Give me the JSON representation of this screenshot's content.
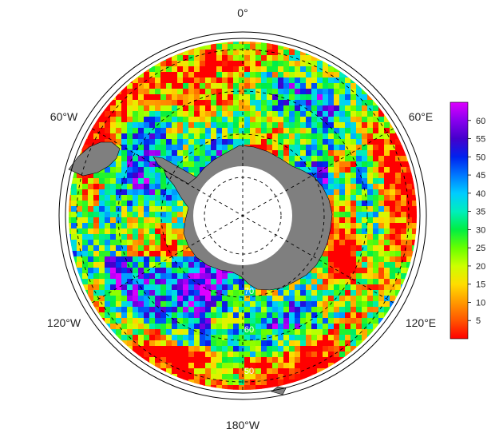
{
  "map": {
    "projection": "south-polar-stereographic",
    "longitude_labels": [
      {
        "id": "lon-0",
        "text": "0°"
      },
      {
        "id": "lon-60e",
        "text": "60°E"
      },
      {
        "id": "lon-120e",
        "text": "120°E"
      },
      {
        "id": "lon-180w",
        "text": "180°W"
      },
      {
        "id": "lon-120w",
        "text": "120°W"
      },
      {
        "id": "lon-60w",
        "text": "60°W"
      }
    ],
    "latitude_labels": [
      {
        "id": "lat-1",
        "text": "70"
      },
      {
        "id": "lat-2",
        "text": "60"
      },
      {
        "id": "lat-3",
        "text": "50"
      }
    ],
    "colors": {
      "land": "#7f7f7f",
      "pole_hole": "#ffffff",
      "graticule": "#000000"
    }
  },
  "colorbar": {
    "min": 0,
    "max": 65,
    "ticks": [
      "5",
      "10",
      "15",
      "20",
      "25",
      "30",
      "35",
      "40",
      "45",
      "50",
      "55",
      "60"
    ],
    "tick_values": [
      5,
      10,
      15,
      20,
      25,
      30,
      35,
      40,
      45,
      50,
      55,
      60
    ],
    "colors": [
      "#ff0000",
      "#ff5500",
      "#ff9900",
      "#ffdd00",
      "#ccff00",
      "#66ff00",
      "#00ee44",
      "#00eebb",
      "#00ccff",
      "#0077ff",
      "#0022ee",
      "#4400cc",
      "#8800ee",
      "#dd00ff"
    ]
  }
}
